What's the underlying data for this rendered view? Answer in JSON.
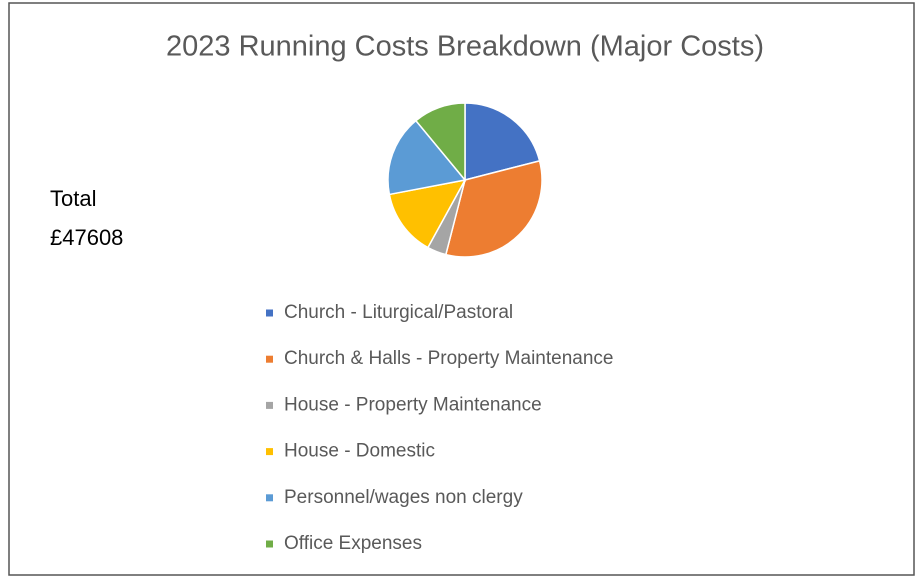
{
  "chart_data": {
    "type": "pie",
    "title": "2023 Running Costs Breakdown (Major Costs)",
    "annotations": [
      "Total",
      "£47608"
    ],
    "categories": [
      "Church - Liturgical/Pastoral",
      "Church & Halls - Property Maintenance",
      "House - Property Maintenance",
      "House - Domestic",
      "Personnel/wages non clergy",
      "Office Expenses"
    ],
    "values": [
      21,
      33,
      4,
      14,
      17,
      11
    ],
    "colors": [
      "#4472c4",
      "#ed7d31",
      "#a5a5a5",
      "#ffc000",
      "#5b9bd5",
      "#70ad47"
    ],
    "legend": "bottom"
  }
}
